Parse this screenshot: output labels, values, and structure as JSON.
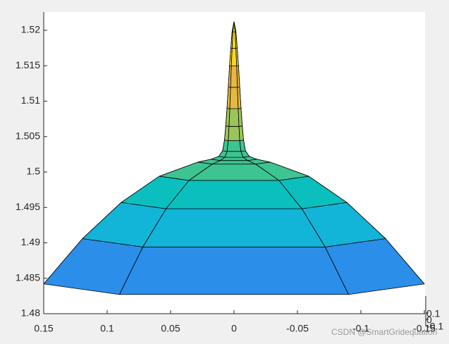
{
  "chart_data": {
    "type": "surface",
    "surface": {
      "r": [
        0.15,
        0.1194,
        0.0889,
        0.0589,
        0.0283,
        0.018,
        0.012,
        0.009,
        0.0075,
        0.0065,
        0.0055,
        0.0045,
        0.0035,
        0.0025,
        0.0015,
        0
      ],
      "z": [
        1.4842,
        1.4906,
        1.4957,
        1.4994,
        1.5014,
        1.5018,
        1.5022,
        1.503,
        1.5045,
        1.5065,
        1.509,
        1.512,
        1.515,
        1.5175,
        1.5198,
        1.5212
      ]
    },
    "colormap": [
      "#4353f0",
      "#2b8ee9",
      "#12b4d7",
      "#0bbfbe",
      "#3ec491",
      "#9bc55a",
      "#e6b840",
      "#f9d724",
      "#f9fb15"
    ],
    "edge_color": "#000000",
    "xlim": [
      0.15,
      -0.15
    ],
    "xticks": [
      0.15,
      0.1,
      0.05,
      0,
      -0.05,
      -0.1,
      -0.15
    ],
    "yticks": [
      0.1,
      0,
      -0.1
    ],
    "zlim": [
      1.48,
      1.52
    ],
    "zticks": [
      1.48,
      1.485,
      1.49,
      1.495,
      1.5,
      1.505,
      1.51,
      1.515,
      1.52
    ],
    "watermark": "CSDN @SmartGridequation"
  }
}
